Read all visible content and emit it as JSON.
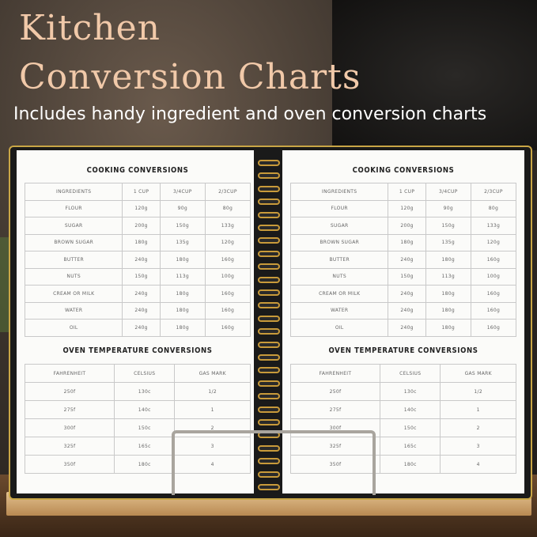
{
  "header": {
    "title_line1": "Kitchen",
    "title_line2": "Conversion Charts",
    "subtitle": "Includes handy ingredient and oven conversion charts"
  },
  "colors": {
    "title": "#f1c9a9",
    "spiral": "#c89a3a",
    "cover": "#1a1a1a"
  },
  "pages": [
    {
      "cooking_title": "COOKING CONVERSIONS",
      "oven_title": "OVEN TEMPERATURE CONVERSIONS"
    },
    {
      "cooking_title": "COOKING CONVERSIONS",
      "oven_title": "OVEN TEMPERATURE CONVERSIONS"
    }
  ],
  "cooking": {
    "headers": [
      "INGREDIENTS",
      "1 CUP",
      "3/4CUP",
      "2/3CUP"
    ],
    "rows": [
      [
        "FLOUR",
        "120g",
        "90g",
        "80g"
      ],
      [
        "SUGAR",
        "200g",
        "150g",
        "133g"
      ],
      [
        "BROWN SUGAR",
        "180g",
        "135g",
        "120g"
      ],
      [
        "BUTTER",
        "240g",
        "180g",
        "160g"
      ],
      [
        "NUTS",
        "150g",
        "113g",
        "100g"
      ],
      [
        "CREAM OR MILK",
        "240g",
        "180g",
        "160g"
      ],
      [
        "WATER",
        "240g",
        "180g",
        "160g"
      ],
      [
        "OIL",
        "240g",
        "180g",
        "160g"
      ]
    ]
  },
  "oven": {
    "headers": [
      "FAHRENHEIT",
      "CELSIUS",
      "GAS MARK"
    ],
    "rows": [
      [
        "250f",
        "130c",
        "1/2"
      ],
      [
        "275f",
        "140c",
        "1"
      ],
      [
        "300f",
        "150c",
        "2"
      ],
      [
        "325f",
        "165c",
        "3"
      ],
      [
        "350f",
        "180c",
        "4"
      ]
    ]
  }
}
